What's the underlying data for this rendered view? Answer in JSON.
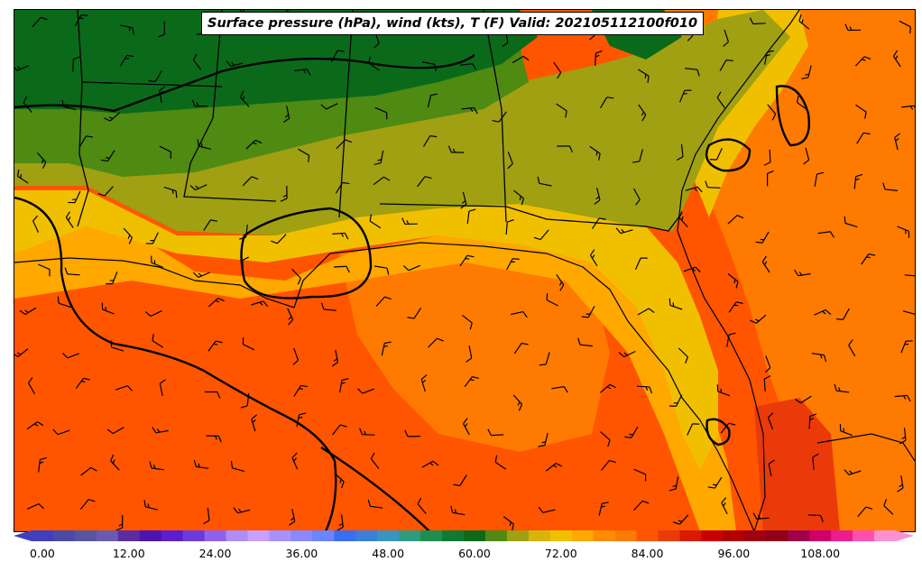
{
  "title": "Surface pressure (hPa), wind (kts), T (F) Valid: 202105112100f010",
  "colors": {
    "dark_green": "#0b6a1a",
    "mid_green": "#4f8a13",
    "olive": "#a0a012",
    "yellow": "#f0c000",
    "light_orange": "#ffa800",
    "orange": "#ff7a00",
    "deep_orange": "#ff5500",
    "red_orange": "#ea3a0a",
    "contour": "#000000"
  },
  "colorbar": {
    "ticks": [
      "0.00",
      "12.00",
      "24.00",
      "36.00",
      "48.00",
      "60.00",
      "72.00",
      "84.00",
      "96.00",
      "108.00"
    ],
    "colors": [
      "#3f3fbf",
      "#4a4aa8",
      "#5656a0",
      "#6a5ab0",
      "#5a2ea0",
      "#4c14b0",
      "#5a1ed0",
      "#6a3ae0",
      "#9060f0",
      "#b08cf8",
      "#c8a0ff",
      "#a890ff",
      "#8888ff",
      "#6a86ff",
      "#3a6ef0",
      "#3a80d8",
      "#3a94c0",
      "#2e9a80",
      "#1e8e50",
      "#0e7a36",
      "#0b6a1a",
      "#4f8a13",
      "#a0a012",
      "#d8b40a",
      "#f0c000",
      "#ffa800",
      "#ff8c00",
      "#ff7a00",
      "#ff5500",
      "#ea3a0a",
      "#d81a00",
      "#c80000",
      "#b00000",
      "#a00010",
      "#900018",
      "#a0004a",
      "#d0006a",
      "#ee1c8c",
      "#ff50b0",
      "#ff90d0"
    ]
  }
}
